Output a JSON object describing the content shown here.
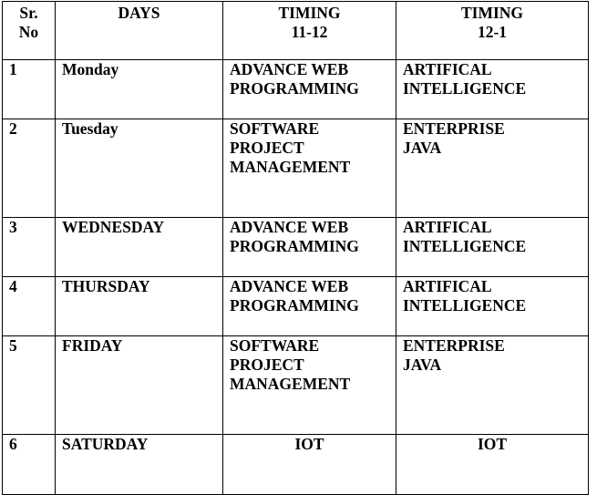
{
  "header": {
    "sr": [
      "Sr.",
      "No"
    ],
    "days": "DAYS",
    "timing1": [
      "TIMING",
      "11-12"
    ],
    "timing2": [
      "TIMING",
      "12-1"
    ]
  },
  "rows": [
    {
      "sr": "1",
      "day": "Monday",
      "slot1": [
        "ADVANCE WEB",
        "PROGRAMMING"
      ],
      "slot2": [
        "ARTIFICAL",
        "INTELLIGENCE"
      ]
    },
    {
      "sr": "2",
      "day": "Tuesday",
      "slot1": [
        "SOFTWARE",
        "PROJECT",
        "MANAGEMENT"
      ],
      "slot2": [
        "ENTERPRISE",
        "JAVA"
      ]
    },
    {
      "sr": "3",
      "day": "WEDNESDAY",
      "slot1": [
        "ADVANCE WEB",
        "PROGRAMMING"
      ],
      "slot2": [
        "ARTIFICAL",
        "INTELLIGENCE"
      ]
    },
    {
      "sr": "4",
      "day": "THURSDAY",
      "slot1": [
        "ADVANCE WEB",
        "PROGRAMMING"
      ],
      "slot2": [
        "ARTIFICAL",
        "INTELLIGENCE"
      ]
    },
    {
      "sr": "5",
      "day": "FRIDAY",
      "slot1": [
        "SOFTWARE",
        "PROJECT",
        "MANAGEMENT"
      ],
      "slot2": [
        "ENTERPRISE",
        "JAVA"
      ]
    },
    {
      "sr": "6",
      "day": "SATURDAY",
      "slot1": [
        "IOT"
      ],
      "slot2": [
        "IOT"
      ]
    }
  ]
}
